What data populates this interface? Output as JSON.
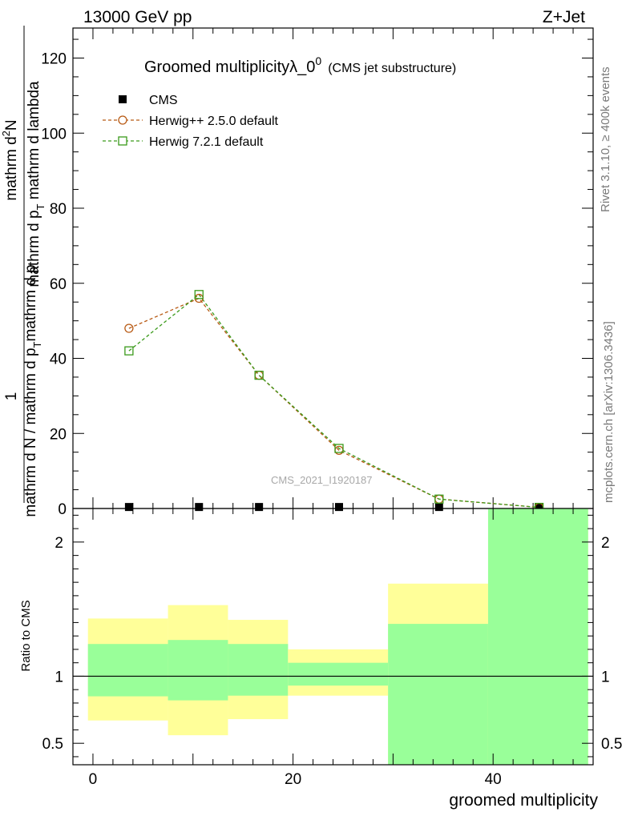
{
  "header": {
    "left_label": "13000 GeV pp",
    "right_label": "Z+Jet"
  },
  "side_labels": {
    "rivet": "Rivet 3.1.10, ≥ 400k events",
    "mcplots": "mcplots.cern.ch [arXiv:1306.3436]"
  },
  "watermark": "CMS_2021_I1920187",
  "colors": {
    "cms": "#000000",
    "herwigpp": "#b85a14",
    "herwig7": "#3a9a1a",
    "band_inner": "#99ff99",
    "band_outer": "#ffff99"
  },
  "chart_data": [
    {
      "type": "line",
      "title_main": "Groomed multiplicityλ_0",
      "title_sup": "0",
      "title_sub": "(CMS jet substructure)",
      "ylabel_top": "1",
      "ylabel_numerator": "mathrm d²N",
      "ylabel_numerator_part1": "mathrm d",
      "ylabel_numerator_part2": "N",
      "ylabel_numerator_sup": "2",
      "ylabel_right": "mathrm d p",
      "ylabel_right_sub": "T",
      "ylabel_right_tail": " mathrm d lambda",
      "ylabel_left": "mathrm d N / mathrm d p",
      "ylabel_left_sub": "T",
      "ylabel_left_tail": "mathrm d p",
      "xlim": [
        -2,
        50
      ],
      "ylim": [
        0,
        128
      ],
      "yticks": [
        0,
        20,
        40,
        60,
        80,
        100,
        120
      ],
      "ytick_labels": [
        "0",
        "20",
        "40",
        "60",
        "80",
        "100",
        "120"
      ],
      "legend": [
        {
          "name": "CMS",
          "marker": "filled-square"
        },
        {
          "name": "Herwig++ 2.5.0 default",
          "marker": "open-circle"
        },
        {
          "name": "Herwig 7.2.1 default",
          "marker": "open-square"
        }
      ],
      "series": [
        {
          "name": "CMS",
          "x": [
            3.6,
            10.6,
            16.6,
            24.6,
            34.6,
            44.6
          ],
          "y": [
            0.4,
            0.4,
            0.4,
            0.4,
            0.4,
            0.4
          ]
        },
        {
          "name": "Herwig++ 2.5.0 default",
          "x": [
            3.6,
            10.6,
            16.6,
            24.6,
            34.6,
            44.6
          ],
          "y": [
            48,
            56,
            35.5,
            15.5,
            2.5,
            0.3
          ]
        },
        {
          "name": "Herwig 7.2.1 default",
          "x": [
            3.6,
            10.6,
            16.6,
            24.6,
            34.6,
            44.6
          ],
          "y": [
            42,
            57,
            35.5,
            16,
            2.5,
            0.3
          ]
        }
      ]
    },
    {
      "type": "area",
      "ylabel": "Ratio to CMS",
      "xlabel": "groomed multiplicity",
      "xlim": [
        -2,
        50
      ],
      "ylim": [
        0.34,
        2.25
      ],
      "xticks": [
        0,
        20,
        40
      ],
      "xtick_labels": [
        "0",
        "20",
        "40"
      ],
      "yticks": [
        0.5,
        1,
        2
      ],
      "ytick_labels": [
        "0.5",
        "1",
        "2"
      ],
      "reference_line": 1,
      "bins": [
        {
          "x0": -0.5,
          "x1": 7.5,
          "inner": [
            0.85,
            1.24
          ],
          "outer": [
            0.67,
            1.43
          ]
        },
        {
          "x0": 7.5,
          "x1": 13.5,
          "inner": [
            0.82,
            1.27
          ],
          "outer": [
            0.56,
            1.53
          ]
        },
        {
          "x0": 13.5,
          "x1": 19.5,
          "inner": [
            0.855,
            1.24
          ],
          "outer": [
            0.68,
            1.42
          ]
        },
        {
          "x0": 19.5,
          "x1": 29.5,
          "inner": [
            0.93,
            1.1
          ],
          "outer": [
            0.855,
            1.2
          ]
        },
        {
          "x0": 29.5,
          "x1": 39.5,
          "inner": [
            0.34,
            1.39
          ],
          "outer": [
            0.34,
            1.69
          ]
        },
        {
          "x0": 39.5,
          "x1": 49.5,
          "inner": [
            0.34,
            2.25
          ],
          "outer": [
            0.34,
            2.25
          ]
        }
      ]
    }
  ]
}
